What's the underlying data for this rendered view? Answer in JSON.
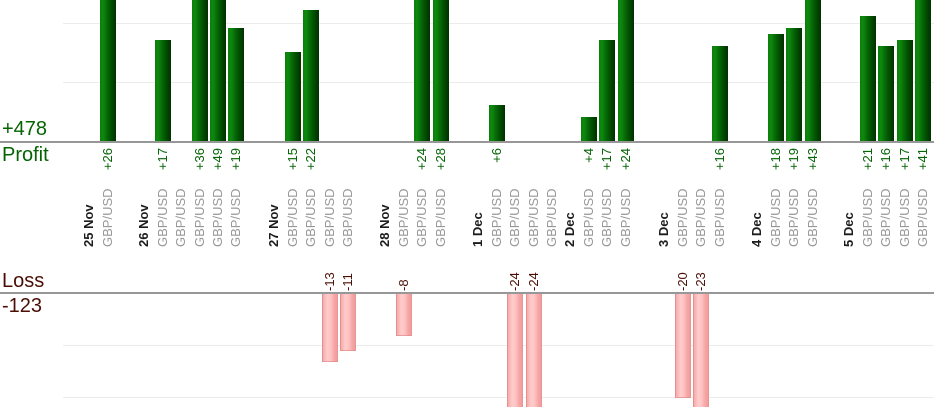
{
  "chart_data": {
    "type": "bar",
    "orientation": "vertical",
    "instrument_shown": "GBP/USD",
    "panels": [
      {
        "id": "profit",
        "axis_label": "Profit",
        "total": "+478",
        "text_color": "#046404",
        "bar_color": "#046304",
        "gridline_values": [
          10,
          20
        ],
        "note_visible_range": "bars taller than ~23 are clipped at top edge of image"
      },
      {
        "id": "loss",
        "axis_label": "Loss",
        "total": "-123",
        "text_color": "#4a0e05",
        "bar_color": "#ffc3c3",
        "gridline_values": [
          -10,
          -20
        ]
      }
    ],
    "groups": [
      {
        "date": "25 Nov",
        "trades": [
          {
            "instrument": "GBP/USD",
            "value": 26,
            "label": "+26"
          }
        ]
      },
      {
        "date": "26 Nov",
        "trades": [
          {
            "instrument": "GBP/USD",
            "value": 17,
            "label": "+17"
          },
          {
            "instrument": "GBP/USD",
            "value": 0,
            "label": ""
          },
          {
            "instrument": "GBP/USD",
            "value": 36,
            "label": "+36"
          },
          {
            "instrument": "GBP/USD",
            "value": 49,
            "label": "+49"
          },
          {
            "instrument": "GBP/USD",
            "value": 19,
            "label": "+19"
          }
        ]
      },
      {
        "date": "27 Nov",
        "trades": [
          {
            "instrument": "GBP/USD",
            "value": 15,
            "label": "+15"
          },
          {
            "instrument": "GBP/USD",
            "value": 22,
            "label": "+22"
          },
          {
            "instrument": "GBP/USD",
            "value": -13,
            "label": "-13"
          },
          {
            "instrument": "GBP/USD",
            "value": -11,
            "label": "-11"
          }
        ]
      },
      {
        "date": "28 Nov",
        "trades": [
          {
            "instrument": "GBP/USD",
            "value": -8,
            "label": "-8"
          },
          {
            "instrument": "GBP/USD",
            "value": 24,
            "label": "+24"
          },
          {
            "instrument": "GBP/USD",
            "value": 28,
            "label": "+28"
          }
        ]
      },
      {
        "date": "1 Dec",
        "trades": [
          {
            "instrument": "GBP/USD",
            "value": 6,
            "label": "+6"
          },
          {
            "instrument": "GBP/USD",
            "value": -24,
            "label": "-24"
          },
          {
            "instrument": "GBP/USD",
            "value": -24,
            "label": "-24"
          },
          {
            "instrument": "GBP/USD",
            "value": 0,
            "label": ""
          }
        ]
      },
      {
        "date": "2 Dec",
        "trades": [
          {
            "instrument": "GBP/USD",
            "value": 4,
            "label": "+4"
          },
          {
            "instrument": "GBP/USD",
            "value": 17,
            "label": "+17"
          },
          {
            "instrument": "GBP/USD",
            "value": 24,
            "label": "+24"
          }
        ]
      },
      {
        "date": "3 Dec",
        "trades": [
          {
            "instrument": "GBP/USD",
            "value": -20,
            "label": "-20"
          },
          {
            "instrument": "GBP/USD",
            "value": -23,
            "label": "-23"
          },
          {
            "instrument": "GBP/USD",
            "value": 16,
            "label": "+16"
          }
        ]
      },
      {
        "date": "4 Dec",
        "trades": [
          {
            "instrument": "GBP/USD",
            "value": 18,
            "label": "+18"
          },
          {
            "instrument": "GBP/USD",
            "value": 19,
            "label": "+19"
          },
          {
            "instrument": "GBP/USD",
            "value": 43,
            "label": "+43"
          }
        ]
      },
      {
        "date": "5 Dec",
        "trades": [
          {
            "instrument": "GBP/USD",
            "value": 21,
            "label": "+21"
          },
          {
            "instrument": "GBP/USD",
            "value": 16,
            "label": "+16"
          },
          {
            "instrument": "GBP/USD",
            "value": 17,
            "label": "+17"
          },
          {
            "instrument": "GBP/USD",
            "value": 41,
            "label": "+41"
          }
        ]
      }
    ]
  },
  "colors": {
    "profit_text": "#046404",
    "loss_text": "#4a0e05",
    "date_label": "#1c1c1c",
    "instrument_label": "#989898",
    "axis_line": "#979797",
    "gridline": "#ececec",
    "background": "#ffffff"
  }
}
